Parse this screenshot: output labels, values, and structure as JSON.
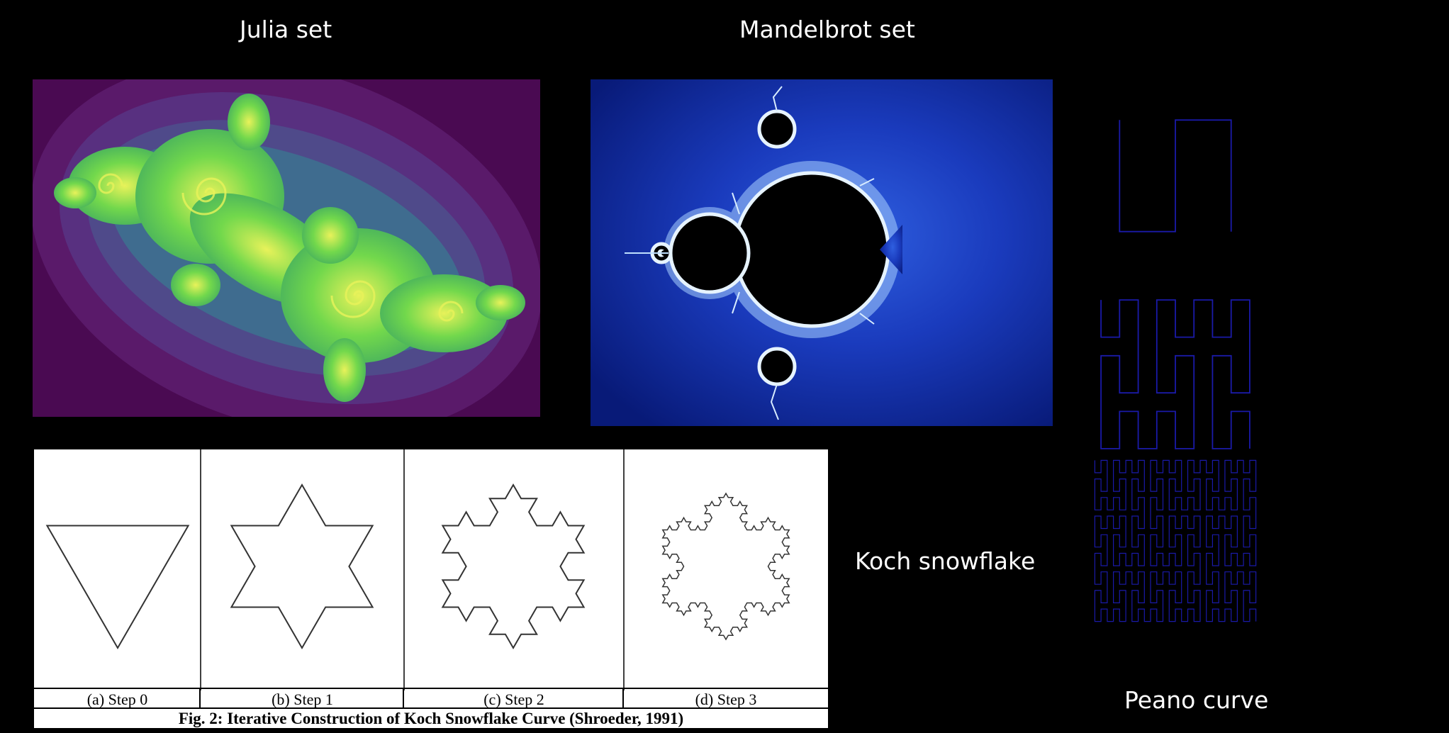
{
  "labels": {
    "julia": "Julia set",
    "mandelbrot": "Mandelbrot set",
    "koch": "Koch snowflake",
    "peano": "Peano curve"
  },
  "koch_figure": {
    "steps": [
      "(a) Step 0",
      "(b) Step 1",
      "(c) Step 2",
      "(d) Step 3"
    ],
    "caption": "Fig. 2: Iterative Construction of Koch Snowflake Curve (Shroeder, 1991)"
  },
  "colors": {
    "background": "#000000",
    "julia_background": "#4a0a52",
    "julia_fractal": "#5fd35a",
    "mandelbrot_background": "#0a2fa8",
    "mandelbrot_edge": "#cfe8ff",
    "peano_stroke": "#1a1aa8"
  }
}
